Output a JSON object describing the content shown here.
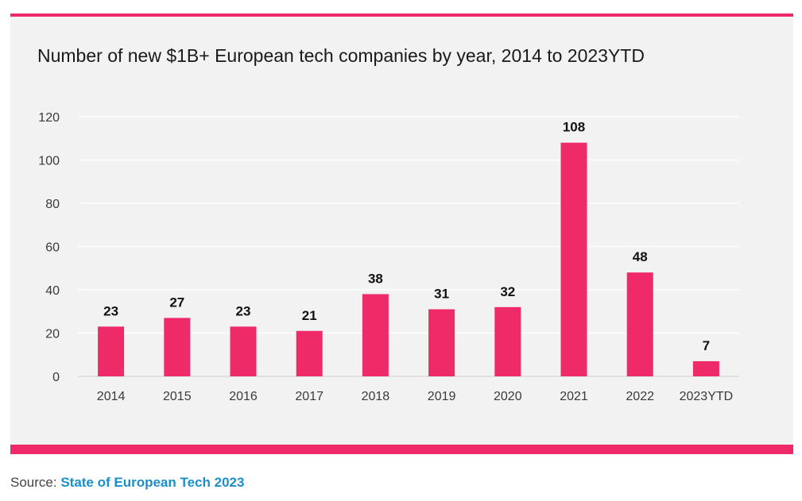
{
  "chart_data": {
    "type": "bar",
    "title": "Number of new $1B+ European tech companies by year, 2014 to 2023YTD",
    "categories": [
      "2014",
      "2015",
      "2016",
      "2017",
      "2018",
      "2019",
      "2020",
      "2021",
      "2022",
      "2023YTD"
    ],
    "values": [
      23,
      27,
      23,
      21,
      38,
      31,
      32,
      108,
      48,
      7
    ],
    "xlabel": "",
    "ylabel": "",
    "ylim": [
      0,
      120
    ],
    "yticks": [
      0,
      20,
      40,
      60,
      80,
      100,
      120
    ],
    "grid": true,
    "data_labels": true
  },
  "source": {
    "prefix": "Source: ",
    "link_text": "State of European Tech 2023"
  },
  "colors": {
    "bar": "#ee2a68",
    "accent_rule": "#ee2a68",
    "link": "#1a8fc9",
    "grid": "#ffffff",
    "background": "#f2f2f2"
  }
}
